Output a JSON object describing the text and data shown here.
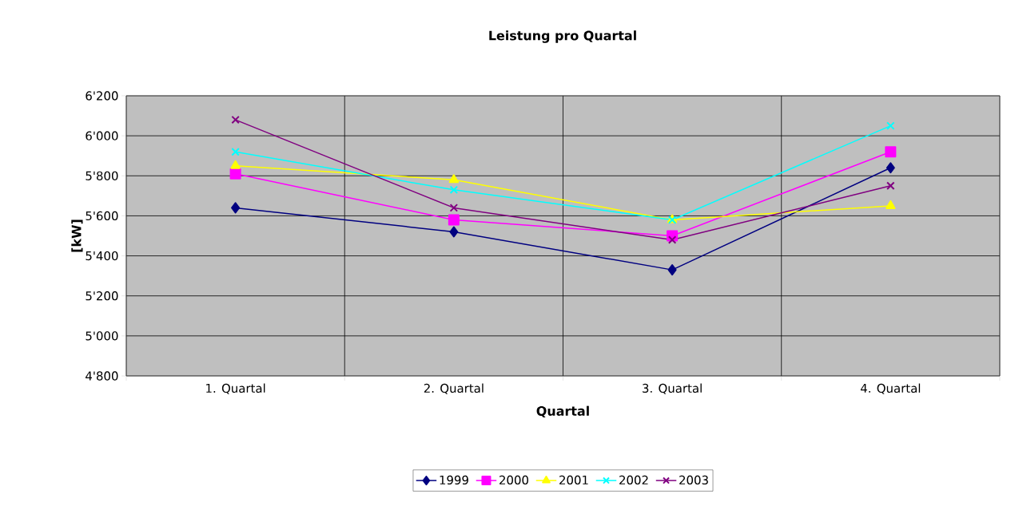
{
  "chart_data": {
    "type": "line",
    "title": "Leistung pro Quartal",
    "xlabel": "Quartal",
    "ylabel": "[kW]",
    "categories": [
      "1. Quartal",
      "2. Quartal",
      "3. Quartal",
      "4. Quartal"
    ],
    "ylim": [
      4800,
      6200
    ],
    "yticks": [
      {
        "value": 4800,
        "label": "4'800"
      },
      {
        "value": 5000,
        "label": "5'000"
      },
      {
        "value": 5200,
        "label": "5'200"
      },
      {
        "value": 5400,
        "label": "5'400"
      },
      {
        "value": 5600,
        "label": "5'600"
      },
      {
        "value": 5800,
        "label": "5'800"
      },
      {
        "value": 6000,
        "label": "6'000"
      },
      {
        "value": 6200,
        "label": "6'200"
      }
    ],
    "grid": true,
    "legend": "bottom",
    "line_style": "solid",
    "series": [
      {
        "name": "1999",
        "color": "#000080",
        "marker": "diamond",
        "values": [
          5640,
          5520,
          5330,
          5840
        ]
      },
      {
        "name": "2000",
        "color": "#ff00ff",
        "marker": "square",
        "values": [
          5810,
          5580,
          5500,
          5920
        ]
      },
      {
        "name": "2001",
        "color": "#ffff00",
        "marker": "triangle",
        "values": [
          5850,
          5780,
          5580,
          5650
        ]
      },
      {
        "name": "2002",
        "color": "#00ffff",
        "marker": "cross",
        "values": [
          5920,
          5730,
          5580,
          6050
        ]
      },
      {
        "name": "2003",
        "color": "#800080",
        "marker": "cross",
        "values": [
          6080,
          5640,
          5480,
          5750
        ]
      }
    ]
  }
}
